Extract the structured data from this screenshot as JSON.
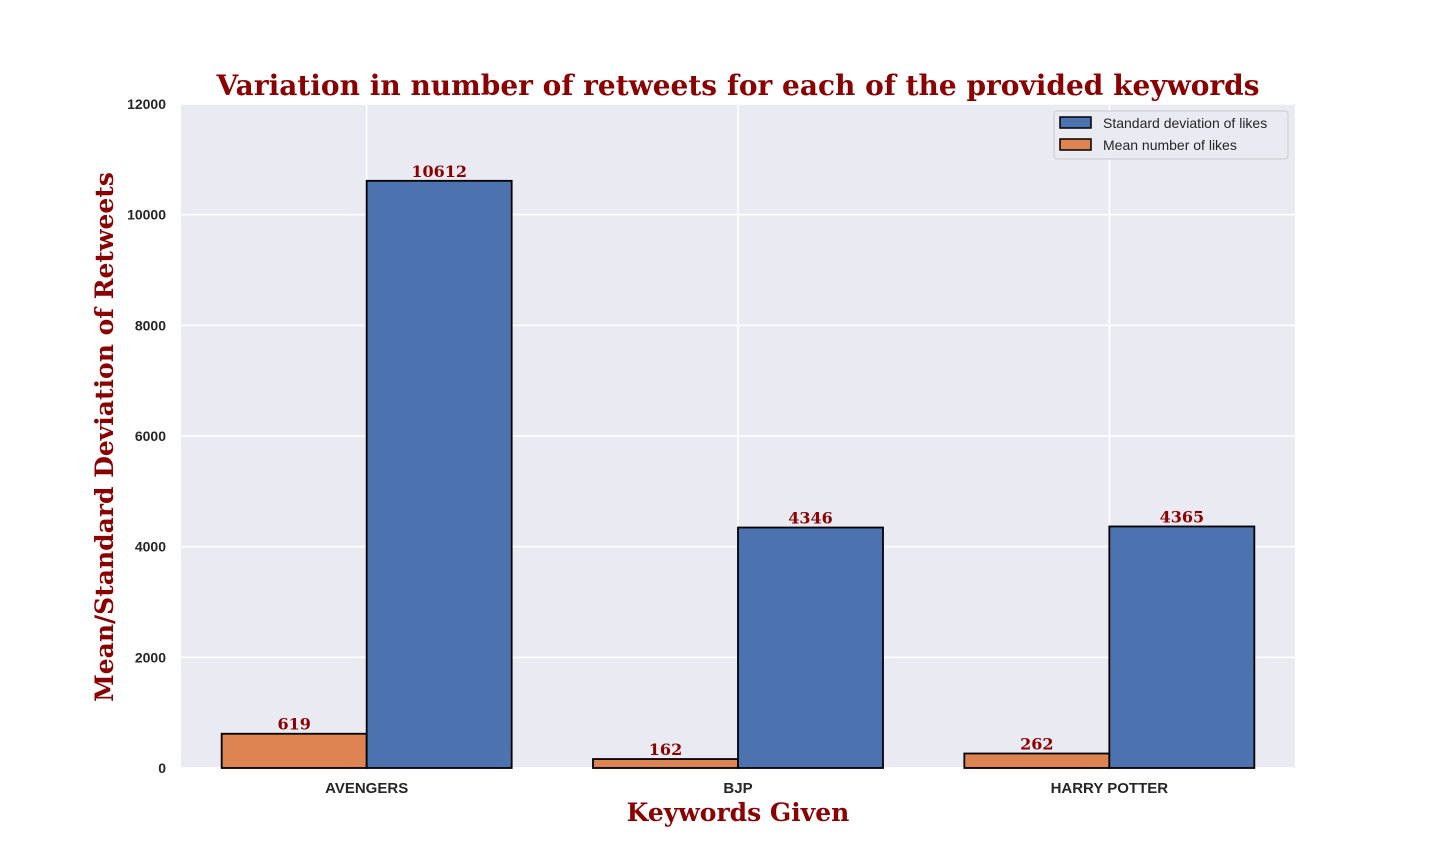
{
  "chart_data": {
    "type": "bar",
    "title": "Variation in number of retweets for each of the provided keywords",
    "xlabel": "Keywords Given",
    "ylabel": "Mean/Standard Deviation of Retweets",
    "categories": [
      "AVENGERS",
      "BJP",
      "HARRY POTTER"
    ],
    "series": [
      {
        "name": "Mean number of likes",
        "values": [
          619,
          162,
          262
        ],
        "color": "#dd8452"
      },
      {
        "name": "Standard deviation of likes",
        "values": [
          10612,
          4346,
          4365
        ],
        "color": "#4c72b0"
      }
    ],
    "legend_order": [
      "Standard deviation of likes",
      "Mean number of likes"
    ],
    "ylim": [
      0,
      12000
    ],
    "yticks": [
      0,
      2000,
      4000,
      6000,
      8000,
      10000,
      12000
    ],
    "grid": true,
    "legend_position": "top-right",
    "colors": {
      "title": "#8b0000",
      "bar_label": "#8b0000",
      "plot_background": "#eaeaf2",
      "grid": "#ffffff",
      "bar_edge": "#000000"
    }
  }
}
